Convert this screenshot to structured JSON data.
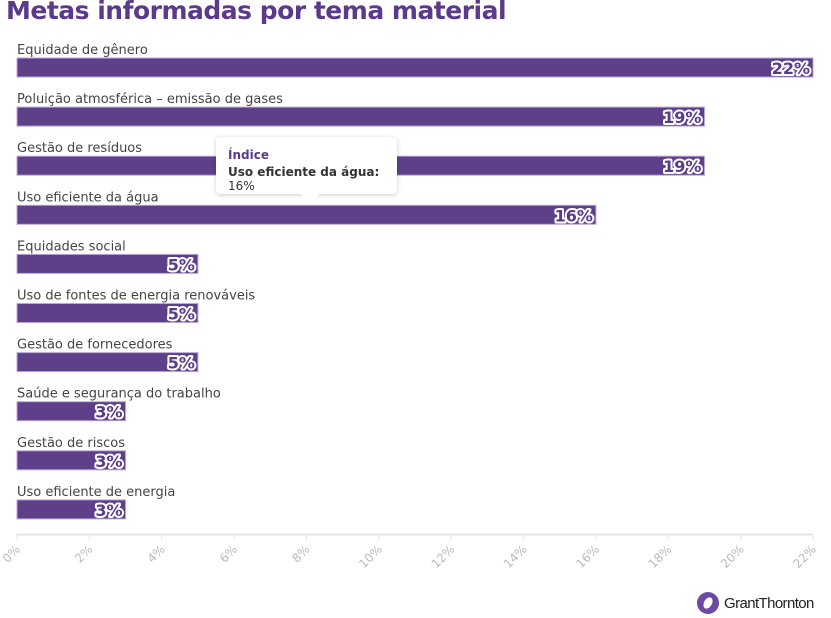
{
  "chart_data": {
    "type": "bar",
    "orientation": "horizontal",
    "title": "Metas informadas por tema material",
    "categories": [
      "Equidade de gênero",
      "Poluição atmosférica – emissão de gases",
      "Gestão de resíduos",
      "Uso eficiente da água",
      "Equidades social",
      "Uso de fontes de energia renováveis",
      "Gestão de fornecedores",
      "Saúde e segurança do trabalho",
      "Gestão de riscos",
      "Uso eficiente de energia"
    ],
    "values": [
      22,
      19,
      19,
      16,
      5,
      5,
      5,
      3,
      3,
      3
    ],
    "value_labels": [
      "22%",
      "19%",
      "19%",
      "16%",
      "5%",
      "5%",
      "5%",
      "3%",
      "3%",
      "3%"
    ],
    "xlim": [
      0,
      22
    ],
    "ticks": [
      "0%",
      "2%",
      "4%",
      "6%",
      "8%",
      "10%",
      "12%",
      "14%",
      "16%",
      "18%",
      "20%",
      "22%"
    ],
    "grid": false,
    "bar_color": "#5e3f8a",
    "label_color": "#5b3a8a"
  },
  "tooltip": {
    "header": "Índice",
    "label": "Uso eficiente da água:",
    "value": "16%"
  },
  "logo": {
    "text": "GrantThornton"
  }
}
